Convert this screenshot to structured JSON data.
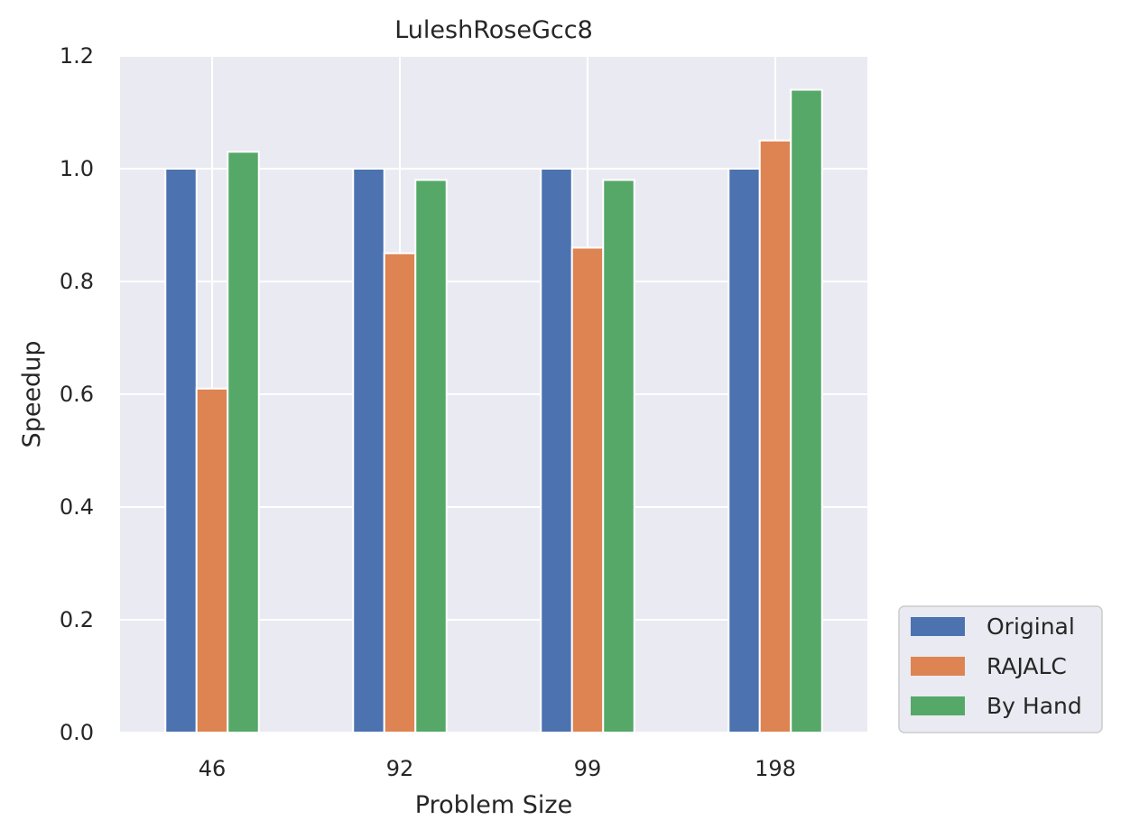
{
  "chart_data": {
    "type": "bar",
    "title": "LuleshRoseGcc8",
    "xlabel": "Problem Size",
    "ylabel": "Speedup",
    "categories": [
      "46",
      "92",
      "99",
      "198"
    ],
    "series": [
      {
        "name": "Original",
        "values": [
          1.0,
          1.0,
          1.0,
          1.0
        ],
        "color": "#4c72b0"
      },
      {
        "name": "RAJALC",
        "values": [
          0.61,
          0.85,
          0.86,
          1.05
        ],
        "color": "#dd8452"
      },
      {
        "name": "By Hand",
        "values": [
          1.03,
          0.98,
          0.98,
          1.14
        ],
        "color": "#55a868"
      }
    ],
    "ylim": [
      0,
      1.2
    ],
    "yticks": [
      "0.0",
      "0.2",
      "0.4",
      "0.6",
      "0.8",
      "1.0",
      "1.2"
    ],
    "grid": true,
    "legend_position": "outside-lower-right",
    "plot_background": "#eaeaf2"
  }
}
